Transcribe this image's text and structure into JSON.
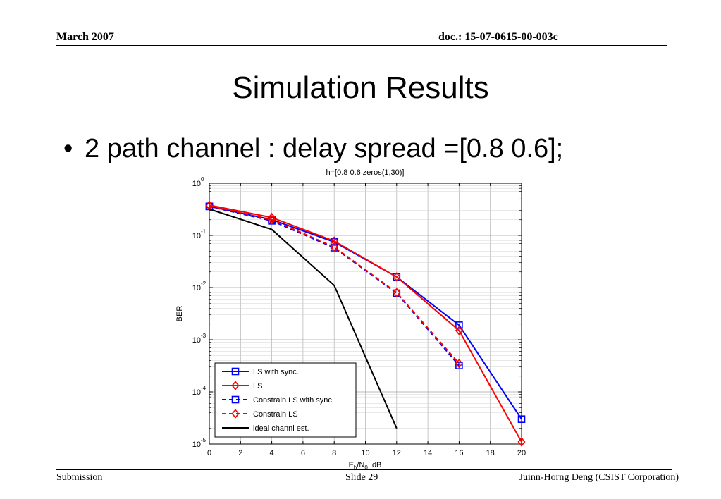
{
  "header": {
    "date": "March 2007",
    "doc": "doc.: 15-07-0615-00-003c"
  },
  "slide": {
    "title": "Simulation Results",
    "bullet_symbol": "•",
    "bullet": "2 path channel : delay spread =[0.8 0.6];"
  },
  "footer": {
    "left": "Submission",
    "center": "Slide 29",
    "right": "Juinn-Horng Deng (CSIST Corporation)"
  },
  "chart_data": {
    "type": "line",
    "title": "h=[0.8 0.6 zeros(1,30)]",
    "xlabel": {
      "base": "E",
      "sub1": "b",
      "mid": "/N",
      "sub2": "0",
      "tail": ", dB"
    },
    "ylabel": "BER",
    "xlim": [
      0,
      20
    ],
    "ylim_exp": [
      -5,
      0
    ],
    "y_scale": "log",
    "x_ticks": [
      "0",
      "2",
      "4",
      "6",
      "8",
      "10",
      "12",
      "14",
      "16",
      "18",
      "20"
    ],
    "y_ticks": [
      {
        "base": "10",
        "exp": "0"
      },
      {
        "base": "10",
        "exp": "-1"
      },
      {
        "base": "10",
        "exp": "-2"
      },
      {
        "base": "10",
        "exp": "-3"
      },
      {
        "base": "10",
        "exp": "-4"
      },
      {
        "base": "10",
        "exp": "-5"
      }
    ],
    "grid": true,
    "legend_position": "bottom-left",
    "series": [
      {
        "name": "LS with sync.",
        "color": "#0000ff",
        "dash": false,
        "marker": "square",
        "x": [
          0,
          4,
          8,
          12,
          16,
          20
        ],
        "y": [
          0.36,
          0.2,
          0.075,
          0.016,
          0.0019,
          3e-05
        ]
      },
      {
        "name": "LS",
        "color": "#ff0000",
        "dash": false,
        "marker": "diamond",
        "x": [
          0,
          4,
          8,
          12,
          16,
          20
        ],
        "y": [
          0.38,
          0.22,
          0.078,
          0.016,
          0.0015,
          1.1e-05
        ]
      },
      {
        "name": "Constrain LS with sync.",
        "color": "#0000ff",
        "dash": true,
        "marker": "square",
        "x": [
          0,
          4,
          8,
          12,
          16
        ],
        "y": [
          0.36,
          0.19,
          0.058,
          0.0078,
          0.00032
        ]
      },
      {
        "name": "Constrain LS",
        "color": "#ff0000",
        "dash": true,
        "marker": "diamond",
        "x": [
          0,
          4,
          8,
          12,
          16
        ],
        "y": [
          0.37,
          0.2,
          0.06,
          0.008,
          0.00035
        ]
      },
      {
        "name": "ideal channl est.",
        "color": "#000000",
        "dash": false,
        "marker": "none",
        "x": [
          0,
          4,
          8,
          12
        ],
        "y": [
          0.32,
          0.13,
          0.011,
          2e-05
        ]
      }
    ]
  }
}
